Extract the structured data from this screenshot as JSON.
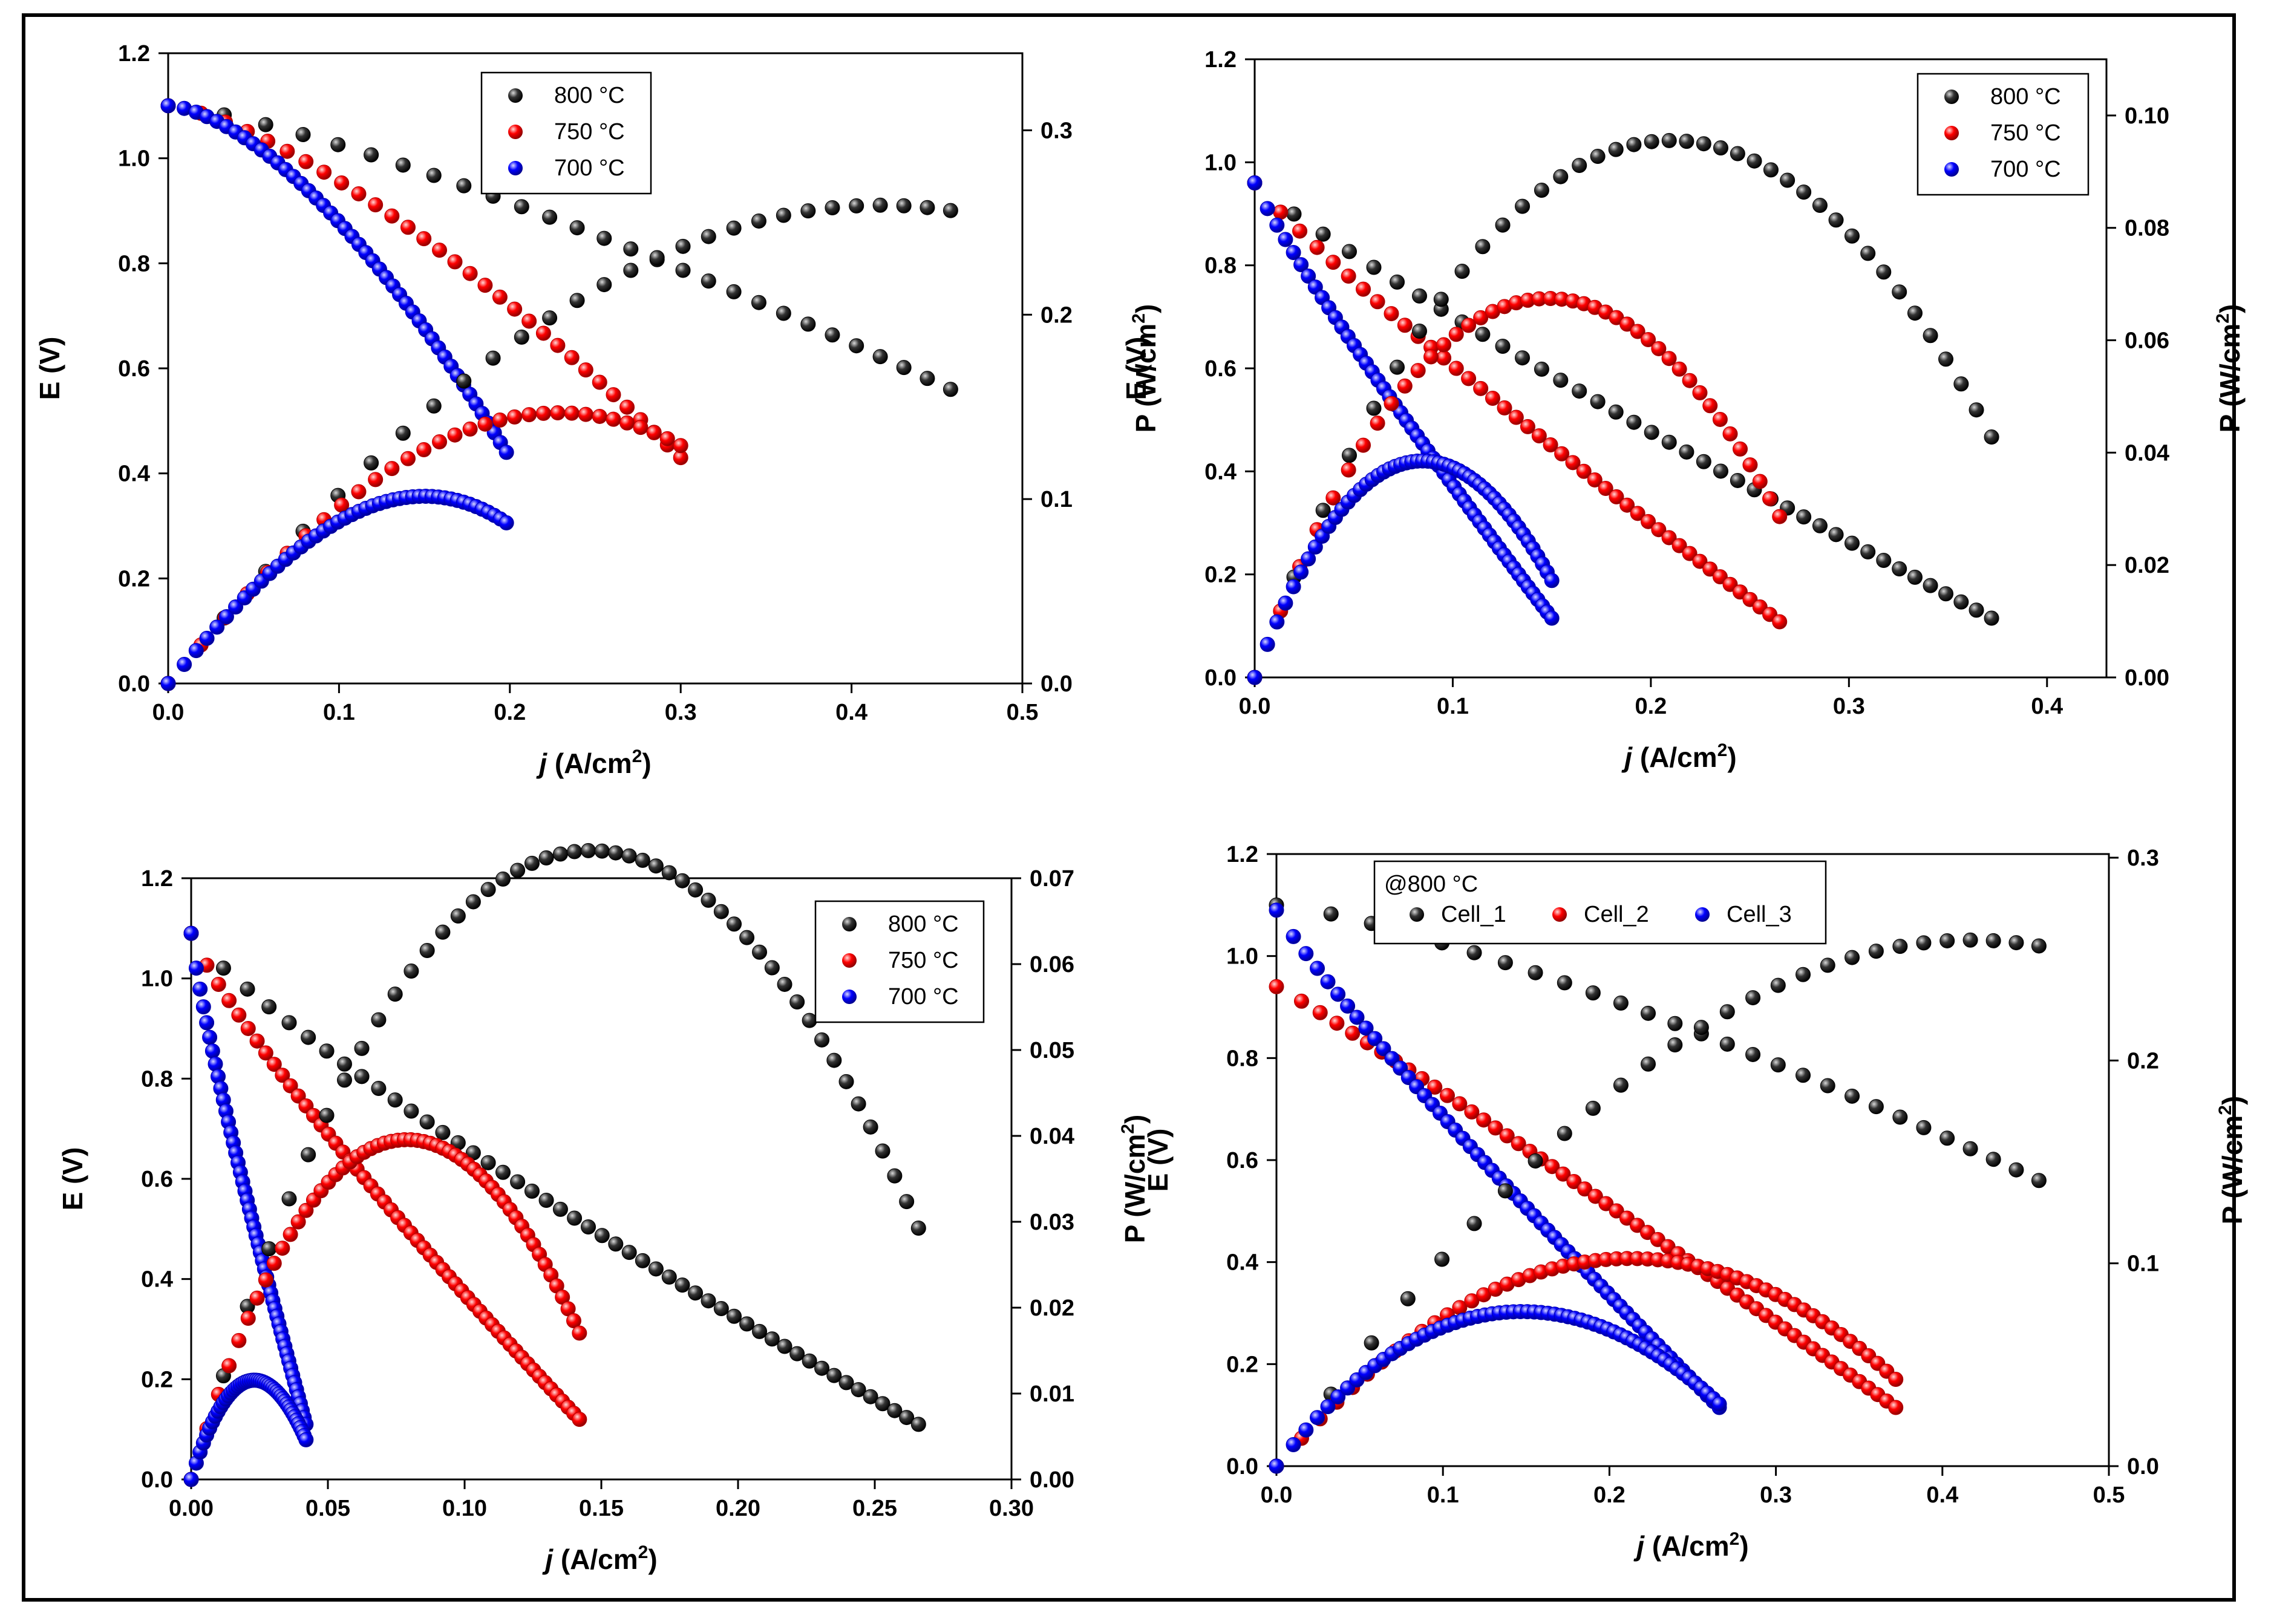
{
  "chart_data": [
    {
      "type": "scatter",
      "panel": "top-left",
      "xlabel_italic": "j",
      "xlabel_rest": " (A/cm",
      "xlabel_sup": "2",
      "xlabel_close": ")",
      "ylabel": "E (V)",
      "y2label_main": "P (W/cm",
      "y2label_sup": "2",
      "y2label_close": ")",
      "xlim": [
        0,
        0.5
      ],
      "ylim": [
        0,
        1.2
      ],
      "y2lim": [
        0,
        0.3418
      ],
      "xticks": [
        0,
        0.1,
        0.2,
        0.3,
        0.4,
        0.5
      ],
      "xtick_labels": [
        "0.0",
        "0.1",
        "0.2",
        "0.3",
        "0.4",
        "0.5"
      ],
      "yticks": [
        0,
        0.2,
        0.4,
        0.6,
        0.8,
        1.0,
        1.2
      ],
      "ytick_labels": [
        "0.0",
        "0.2",
        "0.4",
        "0.6",
        "0.8",
        "1.0",
        "1.2"
      ],
      "y2ticks": [
        0,
        0.1,
        0.2,
        0.3
      ],
      "y2tick_labels": [
        "0.0",
        "0.1",
        "0.2",
        "0.3"
      ],
      "legend": {
        "placement": "top-center",
        "title": "",
        "entries": [
          "800 °C",
          "750 °C",
          "700 °C"
        ],
        "colors": [
          "#000000",
          "#ff0000",
          "#0000ff"
        ]
      },
      "series": [
        {
          "color": "#000000",
          "axis": "E",
          "fit": "pow",
          "x0": 0,
          "x1": 0.458,
          "e0": 1.1,
          "e1": 0.56,
          "p": 1.3,
          "n": 28
        },
        {
          "color": "#ff0000",
          "axis": "E",
          "fit": "pow",
          "x0": 0,
          "x1": 0.3,
          "e0": 1.1,
          "e1": 0.43,
          "p": 1.4,
          "n": 32
        },
        {
          "color": "#0000ff",
          "axis": "E",
          "fit": "pow",
          "x0": 0,
          "x1": 0.198,
          "e0": 1.1,
          "e1": 0.44,
          "p": 1.6,
          "n": 46
        },
        {
          "color": "#000000",
          "axis": "P",
          "fit": "power",
          "x0": 0,
          "x1": 0.458,
          "e0": 1.1,
          "e1": 0.56,
          "p": 1.3,
          "n": 28
        },
        {
          "color": "#ff0000",
          "axis": "P",
          "fit": "power",
          "x0": 0,
          "x1": 0.3,
          "e0": 1.1,
          "e1": 0.43,
          "p": 1.4,
          "n": 32
        },
        {
          "color": "#0000ff",
          "axis": "P",
          "fit": "power",
          "x0": 0,
          "x1": 0.198,
          "e0": 1.1,
          "e1": 0.44,
          "p": 1.6,
          "n": 46
        }
      ]
    },
    {
      "type": "scatter",
      "panel": "top-right",
      "xlabel_italic": "j",
      "xlabel_rest": " (A/cm",
      "xlabel_sup": "2",
      "xlabel_close": ")",
      "ylabel": "E (V)",
      "y2label_main": "P (W/cm",
      "y2label_sup": "2",
      "y2label_close": ")",
      "xlim": [
        0,
        0.43
      ],
      "ylim": [
        0,
        1.2
      ],
      "y2lim": [
        0,
        0.11
      ],
      "xticks": [
        0,
        0.1,
        0.2,
        0.3,
        0.4
      ],
      "xtick_labels": [
        "0.0",
        "0.1",
        "0.2",
        "0.3",
        "0.4"
      ],
      "yticks": [
        0,
        0.2,
        0.4,
        0.6,
        0.8,
        1.0,
        1.2
      ],
      "ytick_labels": [
        "0.0",
        "0.2",
        "0.4",
        "0.6",
        "0.8",
        "1.0",
        "1.2"
      ],
      "y2ticks": [
        0,
        0.02,
        0.04,
        0.06,
        0.08,
        0.1
      ],
      "y2tick_labels": [
        "0.00",
        "0.02",
        "0.04",
        "0.06",
        "0.08",
        "0.10"
      ],
      "legend": {
        "placement": "top-right",
        "title": "",
        "entries": [
          "800 °C",
          "750 °C",
          "700 °C"
        ],
        "colors": [
          "#000000",
          "#ff0000",
          "#0000ff"
        ]
      },
      "series": [
        {
          "color": "#000000",
          "axis": "E",
          "fit": "pow",
          "x0": 0,
          "x1": 0.372,
          "e0": 0.96,
          "e1": 0.115,
          "p": 0.9,
          "n": 40
        },
        {
          "color": "#ff0000",
          "axis": "E",
          "fit": "pow",
          "x0": 0,
          "x1": 0.265,
          "e0": 0.96,
          "e1": 0.108,
          "p": 0.9,
          "n": 44
        },
        {
          "color": "#0000ff",
          "axis": "E",
          "fit": "pow",
          "x0": 0,
          "x1": 0.15,
          "e0": 0.96,
          "e1": 0.115,
          "p": 0.9,
          "n": 52
        },
        {
          "color": "#000000",
          "axis": "P",
          "fit": "power",
          "x0": 0,
          "x1": 0.372,
          "e0": 0.96,
          "e1": 0.115,
          "p": 0.9,
          "n": 40
        },
        {
          "color": "#ff0000",
          "axis": "P",
          "fit": "power",
          "x0": 0,
          "x1": 0.265,
          "e0": 0.96,
          "e1": 0.108,
          "p": 0.9,
          "n": 44
        },
        {
          "color": "#0000ff",
          "axis": "P",
          "fit": "power",
          "x0": 0,
          "x1": 0.15,
          "e0": 0.96,
          "e1": 0.115,
          "p": 0.9,
          "n": 52
        }
      ]
    },
    {
      "type": "scatter",
      "panel": "bottom-left",
      "xlabel_italic": "j",
      "xlabel_rest": " (A/cm",
      "xlabel_sup": "2",
      "xlabel_close": ")",
      "ylabel": "E (V)",
      "y2label_main": "P (W/cm",
      "y2label_sup": "2",
      "y2label_close": ")",
      "xlim": [
        0,
        0.3
      ],
      "ylim": [
        0,
        1.2
      ],
      "y2lim": [
        0,
        0.07
      ],
      "xticks": [
        0,
        0.05,
        0.1,
        0.15,
        0.2,
        0.25,
        0.3
      ],
      "xtick_labels": [
        "0.00",
        "0.05",
        "0.10",
        "0.15",
        "0.20",
        "0.25",
        "0.30"
      ],
      "yticks": [
        0,
        0.2,
        0.4,
        0.6,
        0.8,
        1.0,
        1.2
      ],
      "ytick_labels": [
        "0.0",
        "0.2",
        "0.4",
        "0.6",
        "0.8",
        "1.0",
        "1.2"
      ],
      "y2ticks": [
        0,
        0.01,
        0.02,
        0.03,
        0.04,
        0.05,
        0.06,
        0.07
      ],
      "y2tick_labels": [
        "0.00",
        "0.01",
        "0.02",
        "0.03",
        "0.04",
        "0.05",
        "0.06",
        "0.07"
      ],
      "legend": {
        "placement": "top-right",
        "title": "",
        "entries": [
          "800 °C",
          "750 °C",
          "700 °C"
        ],
        "colors": [
          "#000000",
          "#ff0000",
          "#0000ff"
        ]
      },
      "series": [
        {
          "color": "#000000",
          "axis": "E",
          "fit": "pow",
          "x0": 0,
          "x1": 0.266,
          "e0": 1.09,
          "e1": 0.11,
          "p": 0.85,
          "n": 50
        },
        {
          "color": "#ff0000",
          "axis": "E",
          "fit": "pow",
          "x0": 0,
          "x1": 0.142,
          "e0": 1.09,
          "e1": 0.12,
          "p": 0.85,
          "n": 56
        },
        {
          "color": "#0000ff",
          "axis": "E",
          "fit": "pow",
          "x0": 0,
          "x1": 0.042,
          "e0": 1.09,
          "e1": 0.11,
          "p": 0.85,
          "n": 50
        },
        {
          "color": "#000000",
          "axis": "P",
          "fit": "power",
          "x0": 0,
          "x1": 0.266,
          "e0": 1.09,
          "e1": 0.11,
          "p": 0.85,
          "n": 50
        },
        {
          "color": "#ff0000",
          "axis": "P",
          "fit": "power",
          "x0": 0,
          "x1": 0.142,
          "e0": 1.09,
          "e1": 0.12,
          "p": 0.85,
          "n": 56
        },
        {
          "color": "#0000ff",
          "axis": "P",
          "fit": "power",
          "x0": 0,
          "x1": 0.042,
          "e0": 1.09,
          "e1": 0.11,
          "p": 0.85,
          "n": 50
        }
      ]
    },
    {
      "type": "scatter",
      "panel": "bottom-right",
      "xlabel_italic": "j",
      "xlabel_rest": " (A/cm",
      "xlabel_sup": "2",
      "xlabel_close": ")",
      "ylabel": "E (V)",
      "y2label_main": "P (W/cm",
      "y2label_sup": "2",
      "y2label_close": ")",
      "xlim": [
        0,
        0.5
      ],
      "ylim": [
        0,
        1.2
      ],
      "y2lim": [
        0,
        0.3018
      ],
      "xticks": [
        0,
        0.1,
        0.2,
        0.3,
        0.4,
        0.5
      ],
      "xtick_labels": [
        "0.0",
        "0.1",
        "0.2",
        "0.3",
        "0.4",
        "0.5"
      ],
      "yticks": [
        0,
        0.2,
        0.4,
        0.6,
        0.8,
        1.0,
        1.2
      ],
      "ytick_labels": [
        "0.0",
        "0.2",
        "0.4",
        "0.6",
        "0.8",
        "1.0",
        "1.2"
      ],
      "y2ticks": [
        0,
        0.1,
        0.2,
        0.3
      ],
      "y2tick_labels": [
        "0.0",
        "0.1",
        "0.2",
        "0.3"
      ],
      "legend": {
        "placement": "top-left",
        "title": "@800 °C",
        "entries": [
          "Cell_1",
          "Cell_2",
          "Cell_3"
        ],
        "colors": [
          "#000000",
          "#ff0000",
          "#0000ff"
        ]
      },
      "series": [
        {
          "color": "#000000",
          "axis": "E",
          "fit": "pow",
          "x0": 0,
          "x1": 0.458,
          "e0": 1.1,
          "e1": 0.56,
          "p": 1.3,
          "n": 28
        },
        {
          "color": "#ff0000",
          "axis": "E",
          "fit": "pow",
          "x0": 0,
          "x1": 0.372,
          "e0": 0.94,
          "e1": 0.115,
          "p": 1.05,
          "n": 56
        },
        {
          "color": "#0000ff",
          "axis": "E",
          "fit": "pow",
          "x0": 0,
          "x1": 0.266,
          "e0": 1.09,
          "e1": 0.115,
          "p": 0.9,
          "n": 60
        },
        {
          "color": "#000000",
          "axis": "P",
          "fit": "power",
          "x0": 0,
          "x1": 0.458,
          "e0": 1.1,
          "e1": 0.56,
          "p": 1.3,
          "n": 28
        },
        {
          "color": "#ff0000",
          "axis": "P",
          "fit": "power",
          "x0": 0,
          "x1": 0.372,
          "e0": 0.94,
          "e1": 0.115,
          "p": 1.05,
          "n": 56
        },
        {
          "color": "#0000ff",
          "axis": "P",
          "fit": "power",
          "x0": 0,
          "x1": 0.266,
          "e0": 1.09,
          "e1": 0.115,
          "p": 0.9,
          "n": 60
        }
      ]
    }
  ]
}
